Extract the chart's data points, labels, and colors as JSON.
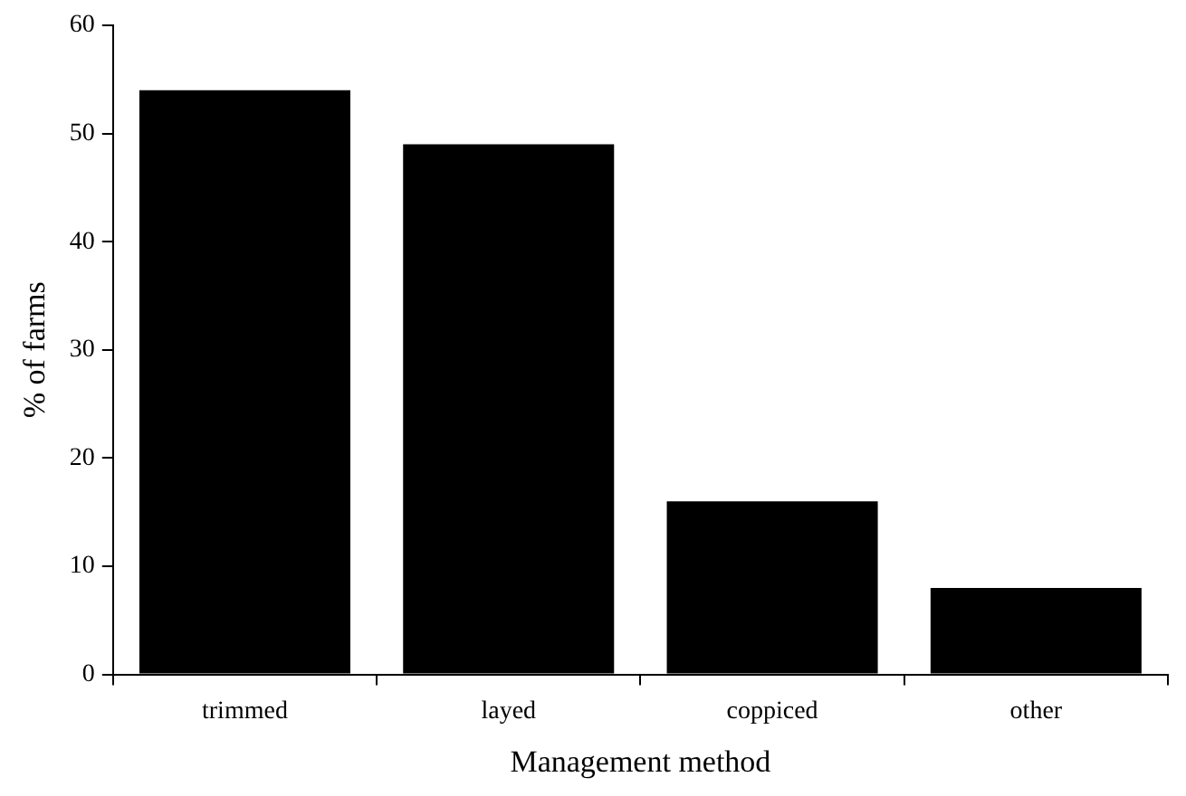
{
  "chart_data": {
    "type": "bar",
    "xlabel": "Management method",
    "ylabel": "% of farms",
    "categories": [
      "trimmed",
      "layed",
      "coppiced",
      "other"
    ],
    "values": [
      54,
      49,
      16,
      8
    ],
    "color": "#000000",
    "ylim": [
      0,
      60
    ],
    "yticks": [
      0,
      10,
      20,
      30,
      40,
      50,
      60
    ],
    "grid": false,
    "legend": false
  }
}
